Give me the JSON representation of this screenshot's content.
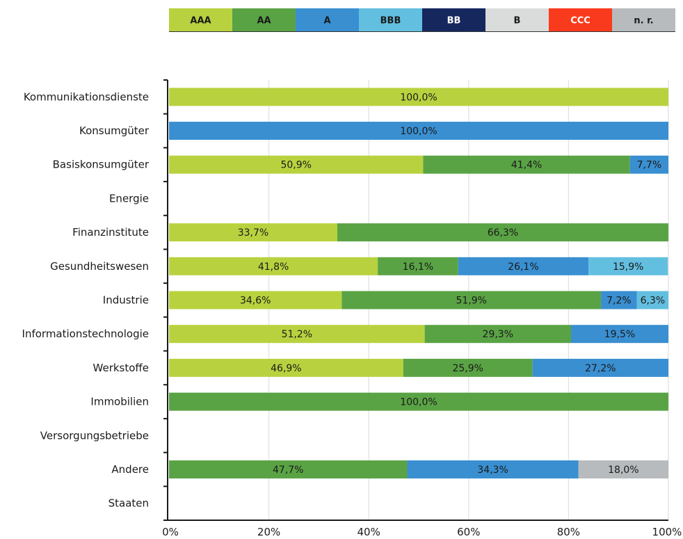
{
  "chart_data": {
    "type": "bar",
    "orientation": "horizontal",
    "stacked": true,
    "percent": true,
    "legend_position": "top",
    "grid": true,
    "xlim": [
      0,
      100
    ],
    "x_ticks": [
      "0%",
      "20%",
      "40%",
      "60%",
      "80%",
      "100%"
    ],
    "x_tick_values": [
      0,
      20,
      40,
      60,
      80,
      100
    ],
    "categories": [
      "Kommunikationsdienste",
      "Konsumgüter",
      "Basiskonsumgüter",
      "Energie",
      "Finanzinstitute",
      "Gesundheitswesen",
      "Industrie",
      "Informationstechnologie",
      "Werkstoffe",
      "Immobilien",
      "Versorgungsbetriebe",
      "Andere",
      "Staaten"
    ],
    "series": [
      {
        "name": "AAA",
        "color": "#b8d23f",
        "label_color": "#1a1a1a",
        "values": [
          100.0,
          0,
          50.9,
          0,
          33.7,
          41.8,
          34.6,
          51.2,
          46.9,
          0,
          0,
          0,
          0
        ],
        "labels": [
          "100,0%",
          "",
          "50,9%",
          "",
          "33,7%",
          "41,8%",
          "34,6%",
          "51,2%",
          "46,9%",
          "",
          "",
          "",
          ""
        ]
      },
      {
        "name": "AA",
        "color": "#5aa345",
        "label_color": "#1a1a1a",
        "values": [
          0,
          0,
          41.4,
          0,
          66.3,
          16.1,
          51.9,
          29.3,
          25.9,
          100.0,
          0,
          47.7,
          0
        ],
        "labels": [
          "",
          "",
          "41,4%",
          "",
          "66,3%",
          "16,1%",
          "51,9%",
          "29,3%",
          "25,9%",
          "100,0%",
          "",
          "47,7%",
          ""
        ]
      },
      {
        "name": "A",
        "color": "#3a8fd1",
        "label_color": "#1a1a1a",
        "values": [
          0,
          100.0,
          7.7,
          0,
          0,
          26.1,
          7.2,
          19.5,
          27.2,
          0,
          0,
          34.3,
          0
        ],
        "labels": [
          "",
          "100,0%",
          "7,7%",
          "",
          "",
          "26,1%",
          "7,2%",
          "19,5%",
          "27,2%",
          "",
          "",
          "34,3%",
          ""
        ]
      },
      {
        "name": "BBB",
        "color": "#63bfe0",
        "label_color": "#1a1a1a",
        "values": [
          0,
          0,
          0,
          0,
          0,
          15.9,
          6.3,
          0,
          0,
          0,
          0,
          0,
          0
        ],
        "labels": [
          "",
          "",
          "",
          "",
          "",
          "15,9%",
          "6,3%",
          "",
          "",
          "",
          "",
          "",
          ""
        ]
      },
      {
        "name": "BB",
        "color": "#16275e",
        "label_color": "#ffffff",
        "values": [
          0,
          0,
          0,
          0,
          0,
          0,
          0,
          0,
          0,
          0,
          0,
          0,
          0
        ],
        "labels": [
          "",
          "",
          "",
          "",
          "",
          "",
          "",
          "",
          "",
          "",
          "",
          "",
          ""
        ]
      },
      {
        "name": "B",
        "color": "#dadcdb",
        "label_color": "#1a1a1a",
        "values": [
          0,
          0,
          0,
          0,
          0,
          0,
          0,
          0,
          0,
          0,
          0,
          0,
          0
        ],
        "labels": [
          "",
          "",
          "",
          "",
          "",
          "",
          "",
          "",
          "",
          "",
          "",
          "",
          ""
        ]
      },
      {
        "name": "CCC",
        "color": "#fa3a1c",
        "label_color": "#ffffff",
        "values": [
          0,
          0,
          0,
          0,
          0,
          0,
          0,
          0,
          0,
          0,
          0,
          0,
          0
        ],
        "labels": [
          "",
          "",
          "",
          "",
          "",
          "",
          "",
          "",
          "",
          "",
          "",
          "",
          ""
        ]
      },
      {
        "name": "n. r.",
        "color": "#b7bbbd",
        "label_color": "#1a1a1a",
        "values": [
          0,
          0,
          0,
          0,
          0,
          0,
          0,
          0,
          0,
          0,
          0,
          18.0,
          0
        ],
        "labels": [
          "",
          "",
          "",
          "",
          "",
          "",
          "",
          "",
          "",
          "",
          "",
          "18,0%",
          ""
        ]
      }
    ],
    "axis_color": "#1a1a1a",
    "grid_color": "#e0e0e0"
  }
}
